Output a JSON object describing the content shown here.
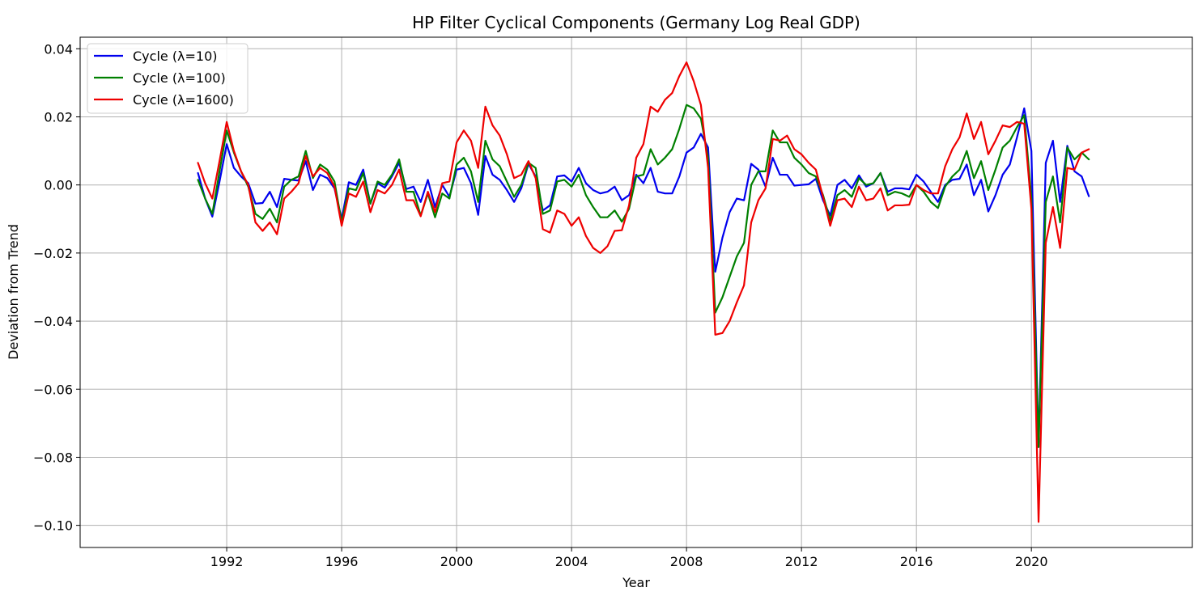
{
  "chart_data": {
    "type": "line",
    "title": "HP Filter Cyclical Components (Germany Log Real GDP)",
    "xlabel": "Year",
    "ylabel": "Deviation from Trend",
    "xlim": [
      1986.9,
      2025.6
    ],
    "ylim": [
      -0.1065,
      0.0434
    ],
    "x_ticks": [
      1992,
      1996,
      2000,
      2004,
      2008,
      2012,
      2016,
      2020
    ],
    "y_ticks": [
      0.04,
      0.02,
      0.0,
      -0.02,
      -0.04,
      -0.06,
      -0.08,
      -0.1
    ],
    "y_tick_labels": [
      "0.04",
      "0.02",
      "0.00",
      "−0.02",
      "−0.04",
      "−0.06",
      "−0.08",
      "−0.10"
    ],
    "grid": true,
    "legend_position": "top-left",
    "x_start": 1991.0,
    "x_step": 0.25,
    "series": [
      {
        "name": "Cycle (λ=10)",
        "color": "#0000ee",
        "values": [
          0.0035,
          -0.004,
          -0.0093,
          0.001,
          0.012,
          0.005,
          0.0025,
          0.0005,
          -0.0055,
          -0.0053,
          -0.002,
          -0.0065,
          0.0018,
          0.0015,
          0.0013,
          0.007,
          -0.0015,
          0.003,
          0.002,
          -0.001,
          -0.01,
          0.0008,
          0.0,
          0.0045,
          -0.0055,
          0.0005,
          -0.0008,
          0.0025,
          0.0065,
          -0.0012,
          -0.0005,
          -0.005,
          0.0015,
          -0.0065,
          0.0,
          -0.0035,
          0.0045,
          0.005,
          0.0005,
          -0.0088,
          0.0085,
          0.003,
          0.0015,
          -0.0015,
          -0.005,
          -0.001,
          0.0062,
          0.0025,
          -0.0075,
          -0.006,
          0.0025,
          0.0028,
          0.001,
          0.005,
          0.0005,
          -0.0015,
          -0.0025,
          -0.002,
          -0.0005,
          -0.0045,
          -0.003,
          0.003,
          0.0005,
          0.005,
          -0.002,
          -0.0025,
          -0.0025,
          0.0025,
          0.0095,
          0.011,
          0.015,
          0.011,
          -0.0255,
          -0.0155,
          -0.008,
          -0.004,
          -0.0045,
          0.0062,
          0.0045,
          -0.0005,
          0.008,
          0.003,
          0.003,
          -0.0002,
          0.0,
          0.0002,
          0.0018,
          -0.0045,
          -0.009,
          0.0,
          0.0015,
          -0.001,
          0.0028,
          -0.0005,
          0.0005,
          0.0035,
          -0.002,
          -0.001,
          -0.001,
          -0.0013,
          0.003,
          0.001,
          -0.002,
          -0.005,
          0.0,
          0.0015,
          0.0018,
          0.006,
          -0.003,
          0.0015,
          -0.0078,
          -0.003,
          0.003,
          0.006,
          0.014,
          0.0225,
          0.01,
          -0.077,
          0.0065,
          0.013,
          -0.005,
          0.0115,
          0.004,
          0.0025,
          -0.0033
        ]
      },
      {
        "name": "Cycle (λ=100)",
        "color": "#008000",
        "values": [
          0.0015,
          -0.004,
          -0.0085,
          0.004,
          0.016,
          0.0095,
          0.004,
          -0.0005,
          -0.0085,
          -0.01,
          -0.007,
          -0.011,
          -0.0005,
          0.0015,
          0.0025,
          0.01,
          0.002,
          0.006,
          0.0045,
          0.001,
          -0.011,
          -0.001,
          -0.0015,
          0.0035,
          -0.0055,
          0.001,
          0.0,
          0.003,
          0.0075,
          -0.002,
          -0.002,
          -0.009,
          -0.0025,
          -0.0095,
          -0.0025,
          -0.004,
          0.006,
          0.008,
          0.004,
          -0.005,
          0.013,
          0.0075,
          0.0055,
          0.001,
          -0.0035,
          0.0,
          0.0065,
          0.005,
          -0.0085,
          -0.0075,
          0.001,
          0.0015,
          -0.0005,
          0.003,
          -0.003,
          -0.0065,
          -0.0095,
          -0.0095,
          -0.0075,
          -0.0108,
          -0.007,
          0.0025,
          0.003,
          0.0105,
          0.006,
          0.008,
          0.0105,
          0.0165,
          0.0235,
          0.0225,
          0.0195,
          0.008,
          -0.0375,
          -0.033,
          -0.027,
          -0.021,
          -0.017,
          0.0,
          0.004,
          0.004,
          0.016,
          0.0125,
          0.0125,
          0.008,
          0.006,
          0.0035,
          0.0025,
          -0.003,
          -0.0105,
          -0.003,
          -0.0015,
          -0.0035,
          0.002,
          0.0,
          0.0005,
          0.0035,
          -0.003,
          -0.002,
          -0.0025,
          -0.0035,
          0.0,
          -0.002,
          -0.005,
          -0.0068,
          -0.0005,
          0.0025,
          0.0045,
          0.01,
          0.002,
          0.007,
          -0.0015,
          0.0045,
          0.011,
          0.013,
          0.017,
          0.0205,
          -0.004,
          -0.077,
          -0.005,
          0.0025,
          -0.011,
          0.011,
          0.0075,
          0.0095,
          0.0075
        ]
      },
      {
        "name": "Cycle (λ=1600)",
        "color": "#ee0000",
        "values": [
          0.0065,
          0.0005,
          -0.004,
          0.007,
          0.0185,
          0.01,
          0.004,
          0.0,
          -0.011,
          -0.0135,
          -0.011,
          -0.0145,
          -0.004,
          -0.002,
          0.0005,
          0.0085,
          0.0025,
          0.005,
          0.0035,
          -0.0005,
          -0.012,
          -0.0025,
          -0.0035,
          0.001,
          -0.008,
          -0.0015,
          -0.0025,
          0.0,
          0.0045,
          -0.0045,
          -0.0045,
          -0.0092,
          -0.002,
          -0.008,
          0.0005,
          0.001,
          0.0125,
          0.016,
          0.013,
          0.005,
          0.023,
          0.0175,
          0.0145,
          0.009,
          0.002,
          0.003,
          0.007,
          0.002,
          -0.013,
          -0.014,
          -0.0075,
          -0.0085,
          -0.012,
          -0.0095,
          -0.015,
          -0.0185,
          -0.02,
          -0.018,
          -0.0135,
          -0.0133,
          -0.006,
          0.008,
          0.012,
          0.023,
          0.0215,
          0.025,
          0.027,
          0.032,
          0.036,
          0.0305,
          0.0235,
          0.005,
          -0.044,
          -0.0435,
          -0.04,
          -0.0345,
          -0.0295,
          -0.011,
          -0.0045,
          -0.001,
          0.0135,
          0.013,
          0.0145,
          0.0105,
          0.009,
          0.0065,
          0.0045,
          -0.0035,
          -0.012,
          -0.0045,
          -0.004,
          -0.0065,
          -0.0005,
          -0.0045,
          -0.004,
          -0.001,
          -0.0075,
          -0.006,
          -0.006,
          -0.0058,
          0.0,
          -0.0015,
          -0.0025,
          -0.0025,
          0.0055,
          0.0105,
          0.014,
          0.021,
          0.0135,
          0.0185,
          0.009,
          0.013,
          0.0175,
          0.017,
          0.0185,
          0.018,
          -0.007,
          -0.099,
          -0.017,
          -0.0065,
          -0.0185,
          0.005,
          0.0045,
          0.0095,
          0.0105
        ]
      }
    ]
  }
}
